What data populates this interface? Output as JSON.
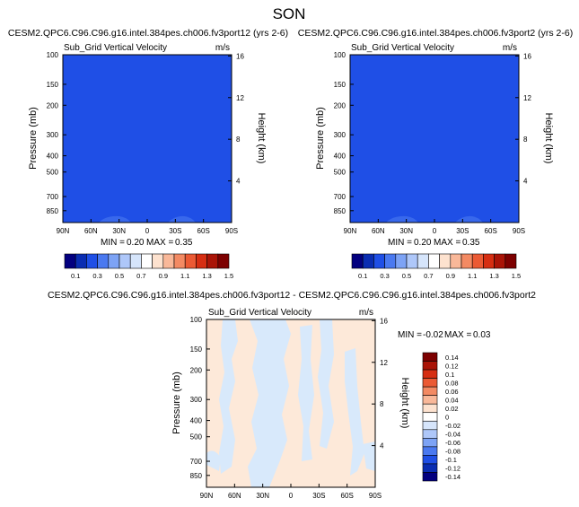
{
  "figure": {
    "title": "SON",
    "diff_title": "CESM2.QPC6.C96.C96.g16.intel.384pes.ch006.fv3port12 - CESM2.QPC6.C96.C96.g16.intel.384pes.ch006.fv3port2"
  },
  "chart_data": [
    {
      "type": "heatmap",
      "title": "CESM2.QPC6.C96.C96.g16.intel.384pes.ch006.fv3port12 (yrs 2-6)",
      "subtitle": "Sub_Grid Vertical Velocity",
      "units": "m/s",
      "ylabel": "Pressure (mb)",
      "y2label": "Height (km)",
      "xticks": [
        "90N",
        "60N",
        "30N",
        "0",
        "30S",
        "60S",
        "90S"
      ],
      "pressure_ticks": [
        100,
        150,
        200,
        300,
        400,
        500,
        700,
        850
      ],
      "height_ticks": [
        4,
        8,
        12,
        16
      ],
      "ylim": [
        1000,
        100
      ],
      "min_label": "MIN =",
      "min_value": "0.20",
      "max_label": "MAX =",
      "max_value": "0.35",
      "field_color": "#1f4fe6",
      "colorbar_labels": [
        "0.1",
        "0.3",
        "0.5",
        "0.7",
        "0.9",
        "1.1",
        "1.3",
        "1.5"
      ],
      "colorbar_colors": [
        "#03007f",
        "#0a2db2",
        "#1f4fe6",
        "#4a79f0",
        "#7da3f5",
        "#aec7f9",
        "#d6e5fb",
        "#ffffff",
        "#fde2cf",
        "#f9b899",
        "#f38a63",
        "#eb5a34",
        "#d62e12",
        "#aa1407",
        "#7d0000"
      ]
    },
    {
      "type": "heatmap",
      "title": "CESM2.QPC6.C96.C96.g16.intel.384pes.ch006.fv3port2 (yrs 2-6)",
      "subtitle": "Sub_Grid Vertical Velocity",
      "units": "m/s",
      "ylabel": "Pressure (mb)",
      "y2label": "Height (km)",
      "xticks": [
        "90N",
        "60N",
        "30N",
        "0",
        "30S",
        "60S",
        "90S"
      ],
      "pressure_ticks": [
        100,
        150,
        200,
        300,
        400,
        500,
        700,
        850
      ],
      "height_ticks": [
        4,
        8,
        12,
        16
      ],
      "ylim": [
        1000,
        100
      ],
      "min_label": "MIN =",
      "min_value": "0.20",
      "max_label": "MAX =",
      "max_value": "0.35",
      "field_color": "#1f4fe6",
      "colorbar_labels": [
        "0.1",
        "0.3",
        "0.5",
        "0.7",
        "0.9",
        "1.1",
        "1.3",
        "1.5"
      ],
      "colorbar_colors": [
        "#03007f",
        "#0a2db2",
        "#1f4fe6",
        "#4a79f0",
        "#7da3f5",
        "#aec7f9",
        "#d6e5fb",
        "#ffffff",
        "#fde2cf",
        "#f9b899",
        "#f38a63",
        "#eb5a34",
        "#d62e12",
        "#aa1407",
        "#7d0000"
      ]
    },
    {
      "type": "heatmap",
      "title": "CESM2.QPC6.C96.C96.g16.intel.384pes.ch006.fv3port12 - CESM2.QPC6.C96.C96.g16.intel.384pes.ch006.fv3port2",
      "subtitle": "Sub_Grid Vertical Velocity",
      "units": "m/s",
      "ylabel": "Pressure (mb)",
      "y2label": "Height (km)",
      "xticks": [
        "90N",
        "60N",
        "30N",
        "0",
        "30S",
        "60S",
        "90S"
      ],
      "pressure_ticks": [
        100,
        150,
        200,
        300,
        400,
        500,
        700,
        850
      ],
      "height_ticks": [
        4,
        8,
        12,
        16
      ],
      "ylim": [
        1000,
        100
      ],
      "min_label": "MIN =",
      "min_value": "-0.02",
      "max_label": "MAX =",
      "max_value": "0.03",
      "positive_color": "#fde9d9",
      "negative_color": "#d8e9fb",
      "colorbar_labels": [
        "0.14",
        "0.12",
        "0.1",
        "0.08",
        "0.06",
        "0.04",
        "0.02",
        "0",
        "-0.02",
        "-0.04",
        "-0.06",
        "-0.08",
        "-0.1",
        "-0.12",
        "-0.14"
      ],
      "colorbar_colors": [
        "#7d0000",
        "#aa1407",
        "#d62e12",
        "#eb5a34",
        "#f38a63",
        "#f9b899",
        "#fde2cf",
        "#ffffff",
        "#d6e5fb",
        "#aec7f9",
        "#7da3f5",
        "#4a79f0",
        "#1f4fe6",
        "#0a2db2",
        "#03007f"
      ]
    }
  ]
}
